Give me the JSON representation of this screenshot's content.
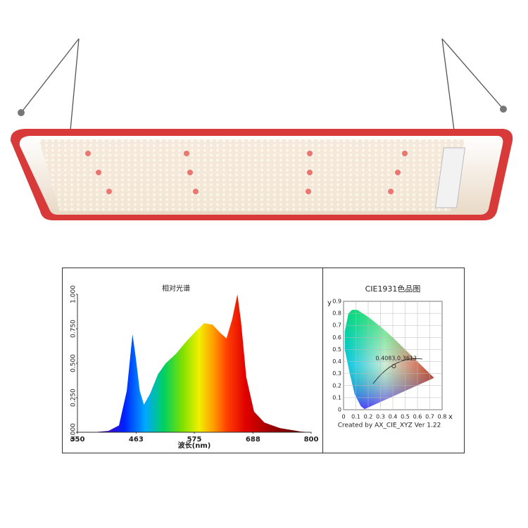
{
  "chart_data": [
    {
      "type": "area",
      "title": "相对光谱",
      "xlabel": "波长(nm)",
      "x": [
        380,
        410,
        430,
        445,
        456,
        462,
        470,
        478,
        490,
        505,
        520,
        540,
        560,
        580,
        594,
        610,
        625,
        637,
        648,
        658,
        665,
        675,
        690,
        710,
        740,
        780,
        800
      ],
      "values": [
        0,
        0.01,
        0.05,
        0.3,
        0.71,
        0.55,
        0.3,
        0.2,
        0.28,
        0.42,
        0.5,
        0.57,
        0.66,
        0.74,
        0.79,
        0.78,
        0.72,
        0.68,
        0.82,
        1.0,
        0.8,
        0.4,
        0.15,
        0.07,
        0.03,
        0.005,
        0
      ],
      "xlim": [
        350,
        800
      ],
      "ylim": [
        0,
        1
      ],
      "xticks": [
        350,
        463,
        575,
        688,
        800
      ],
      "yticks": [
        {
          "value": 0,
          "label": "0.000"
        },
        {
          "value": 0.25,
          "label": "0.250"
        },
        {
          "value": 0.5,
          "label": "0.500"
        },
        {
          "value": 0.75,
          "label": "0.750"
        },
        {
          "value": 1,
          "label": "1.000"
        }
      ]
    },
    {
      "type": "scatter",
      "title": "CIE1931色品图",
      "xlabel": "x",
      "ylabel": "y",
      "x": [
        0.4083
      ],
      "values": [
        0.3613
      ],
      "value_labels": [
        "0.4083,0.3613"
      ],
      "color": "#333333",
      "xlim": [
        0,
        0.8
      ],
      "ylim": [
        0,
        0.9
      ],
      "xticks": [
        0,
        0.1,
        0.2,
        0.3,
        0.4,
        0.5,
        0.6,
        0.7,
        0.8
      ],
      "yticks": [
        0,
        0.1,
        0.2,
        0.3,
        0.4,
        0.5,
        0.6,
        0.7,
        0.8,
        0.9
      ],
      "grid": true,
      "footer": "Created by AX_CIE_XYZ Ver 1.22"
    }
  ]
}
